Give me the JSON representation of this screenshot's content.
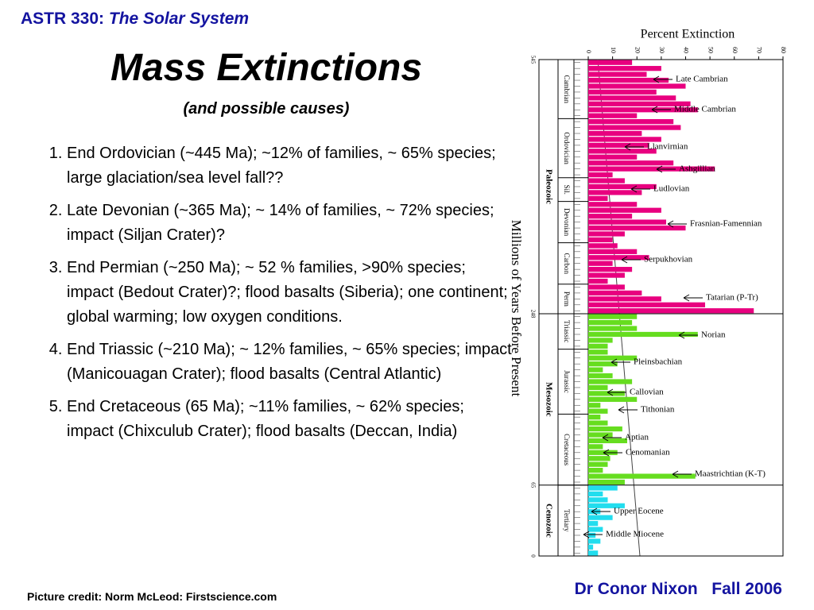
{
  "header": {
    "course": "ASTR 330:",
    "course_title": "The Solar System"
  },
  "title": "Mass Extinctions",
  "subtitle": "(and possible causes)",
  "items": [
    "End Ordovician (~445 Ma); ~12% of families, ~ 65% species; large glaciation/sea level  fall??",
    "Late Devonian (~365 Ma); ~ 14% of families, ~ 72% species; impact (Siljan Crater)?",
    "End Permian (~250 Ma); ~ 52 %  families, >90% species; impact (Bedout Crater)?; flood basalts  (Siberia); one continent; global warming; low oxygen  conditions.",
    "End Triassic (~210 Ma); ~ 12%  families, ~ 65% species; impact (Manicouagan Crater); flood  basalts (Central Atlantic)",
    "End Cretaceous (65 Ma); ~11%  families, ~ 62% species; impact (Chixculub Crater); flood basalts  (Deccan, India)"
  ],
  "credit": "Picture credit: Norm McLeod: Firstscience.com",
  "author": "Dr Conor Nixon   Fall 2006",
  "chart_data": {
    "type": "bar",
    "title": "Percent Extinction",
    "ylabel": "Millions of Years Before Present",
    "xlim": [
      0,
      80
    ],
    "xticks": [
      0,
      10,
      20,
      30,
      40,
      50,
      60,
      70,
      80
    ],
    "boundary_labels": [
      545,
      248,
      65,
      0
    ],
    "eras": [
      {
        "name": "Paleozoic",
        "color": "#e8007f",
        "periods": [
          {
            "name": "Cambrian",
            "values": [
              18,
              30,
              24,
              33,
              40,
              28,
              36,
              42,
              45,
              20
            ]
          },
          {
            "name": "Ordovician",
            "values": [
              35,
              38,
              22,
              30,
              25,
              28,
              20,
              35,
              52,
              10
            ]
          },
          {
            "name": "Sil.",
            "values": [
              15,
              28,
              22,
              8
            ]
          },
          {
            "name": "Devonian",
            "values": [
              20,
              30,
              18,
              32,
              40,
              15,
              10
            ]
          },
          {
            "name": "Carbon",
            "values": [
              12,
              20,
              25,
              10,
              18,
              15,
              8
            ]
          },
          {
            "name": "Perm",
            "values": [
              15,
              22,
              30,
              48,
              68
            ]
          }
        ]
      },
      {
        "name": "Mesozoic",
        "color": "#66dd1f",
        "periods": [
          {
            "name": "Triassic",
            "values": [
              20,
              18,
              20,
              45,
              10,
              8
            ]
          },
          {
            "name": "Jurassic",
            "values": [
              8,
              20,
              12,
              6,
              10,
              18,
              8,
              15,
              20,
              5,
              8
            ]
          },
          {
            "name": "Cretaceous",
            "values": [
              5,
              8,
              14,
              10,
              16,
              6,
              12,
              9,
              8,
              6,
              44,
              15
            ]
          }
        ]
      },
      {
        "name": "Cenozoic",
        "color": "#22ddee",
        "periods": [
          {
            "name": "Tertiary",
            "values": [
              12,
              6,
              8,
              15,
              5,
              10,
              4,
              6,
              3,
              5,
              2,
              4
            ]
          }
        ]
      }
    ],
    "annotations": [
      "Late Cambrian",
      "Middle Cambrian",
      "Llanvirnian",
      "Ashgillian",
      "Ludlovian",
      "Frasnian-Famennian",
      "Serpukhovian",
      "Tatarian (P-Tr)",
      "Norian",
      "Pleinsbachian",
      "Callovian",
      "Tithonian",
      "Aptian",
      "Cenomanian",
      "Maastrichtian (K-T)",
      "Upper Eocene",
      "Middle Miocene"
    ]
  }
}
